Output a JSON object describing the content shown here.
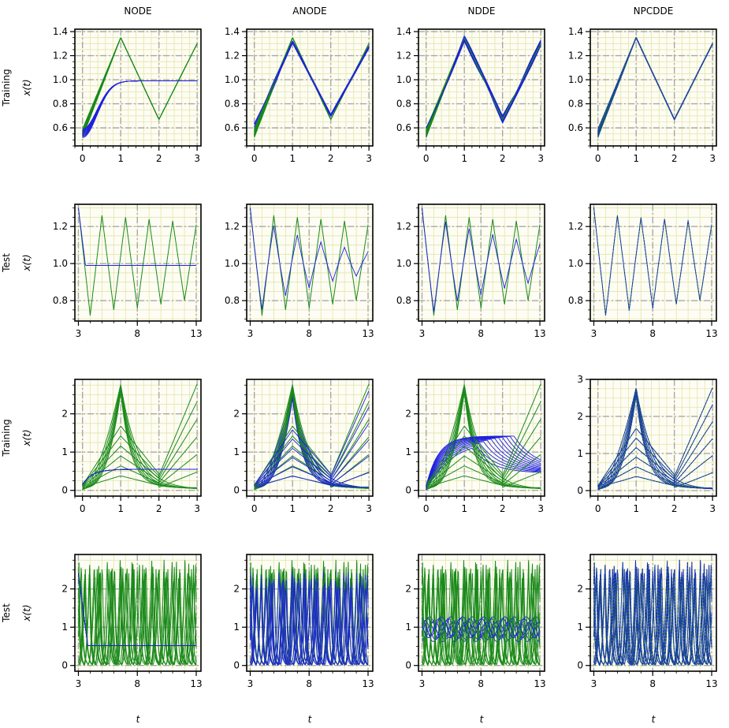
{
  "figure": {
    "column_titles": [
      "NODE",
      "ANODE",
      "NDDE",
      "NPCDDE"
    ],
    "row_labels": [
      "Training",
      "Test",
      "Training",
      "Test"
    ],
    "ylabel": "x(t)",
    "xlabel": "t"
  },
  "colors": {
    "ground_truth": "#1a8a1a",
    "prediction": "#1f1fe0",
    "minor_grid": "#e4e4a8",
    "major_grid": "#a8a8a8"
  },
  "chart_data": [
    {
      "type": "line",
      "row": 0,
      "col": 0,
      "title": "NODE",
      "row_label": "Training",
      "xlim": [
        -0.2,
        3.1
      ],
      "ylim": [
        0.45,
        1.42
      ],
      "xticks": [
        0,
        1,
        2,
        3
      ],
      "yticks": [
        0.6,
        0.8,
        1.0,
        1.2,
        1.4
      ],
      "system": "tri_small",
      "method": "node",
      "n": 10
    },
    {
      "type": "line",
      "row": 0,
      "col": 1,
      "title": "ANODE",
      "row_label": "Training",
      "xlim": [
        -0.2,
        3.1
      ],
      "ylim": [
        0.45,
        1.42
      ],
      "xticks": [
        0,
        1,
        2,
        3
      ],
      "yticks": [
        0.6,
        0.8,
        1.0,
        1.2,
        1.4
      ],
      "system": "tri_small",
      "method": "anode",
      "n": 10
    },
    {
      "type": "line",
      "row": 0,
      "col": 2,
      "title": "NDDE",
      "row_label": "Training",
      "xlim": [
        -0.2,
        3.1
      ],
      "ylim": [
        0.45,
        1.42
      ],
      "xticks": [
        0,
        1,
        2,
        3
      ],
      "yticks": [
        0.6,
        0.8,
        1.0,
        1.2,
        1.4
      ],
      "system": "tri_small",
      "method": "ndde",
      "n": 10
    },
    {
      "type": "line",
      "row": 0,
      "col": 3,
      "title": "NPCDDE",
      "row_label": "Training",
      "xlim": [
        -0.2,
        3.1
      ],
      "ylim": [
        0.45,
        1.42
      ],
      "xticks": [
        0,
        1,
        2,
        3
      ],
      "yticks": [
        0.6,
        0.8,
        1.0,
        1.2,
        1.4
      ],
      "system": "tri_small",
      "method": "npcdde",
      "n": 10
    },
    {
      "type": "line",
      "row": 1,
      "col": 0,
      "row_label": "Test",
      "xlim": [
        2.7,
        13.4
      ],
      "ylim": [
        0.69,
        1.32
      ],
      "xticks": [
        3,
        8,
        13
      ],
      "yticks": [
        0.8,
        1.0,
        1.2
      ],
      "system": "tri_test",
      "method": "node",
      "n": 1
    },
    {
      "type": "line",
      "row": 1,
      "col": 1,
      "row_label": "Test",
      "xlim": [
        2.7,
        13.4
      ],
      "ylim": [
        0.69,
        1.32
      ],
      "xticks": [
        3,
        8,
        13
      ],
      "yticks": [
        0.8,
        1.0,
        1.2
      ],
      "system": "tri_test",
      "method": "anode",
      "n": 1
    },
    {
      "type": "line",
      "row": 1,
      "col": 2,
      "row_label": "Test",
      "xlim": [
        2.7,
        13.4
      ],
      "ylim": [
        0.69,
        1.32
      ],
      "xticks": [
        3,
        8,
        13
      ],
      "yticks": [
        0.8,
        1.0,
        1.2
      ],
      "system": "tri_test",
      "method": "ndde",
      "n": 1
    },
    {
      "type": "line",
      "row": 1,
      "col": 3,
      "row_label": "Test",
      "xlim": [
        2.7,
        13.4
      ],
      "ylim": [
        0.69,
        1.32
      ],
      "xticks": [
        3,
        8,
        13
      ],
      "yticks": [
        0.8,
        1.0,
        1.2
      ],
      "system": "tri_test",
      "method": "npcdde",
      "n": 1
    },
    {
      "type": "line",
      "row": 2,
      "col": 0,
      "row_label": "Training",
      "xlim": [
        -0.2,
        3.1
      ],
      "ylim": [
        -0.15,
        2.9
      ],
      "xticks": [
        0,
        1,
        2,
        3
      ],
      "yticks": [
        0,
        1,
        2
      ],
      "system": "spike",
      "method": "node",
      "n": 12
    },
    {
      "type": "line",
      "row": 2,
      "col": 1,
      "row_label": "Training",
      "xlim": [
        -0.2,
        3.1
      ],
      "ylim": [
        -0.15,
        2.9
      ],
      "xticks": [
        0,
        1,
        2,
        3
      ],
      "yticks": [
        0,
        1,
        2
      ],
      "system": "spike",
      "method": "anode",
      "n": 12
    },
    {
      "type": "line",
      "row": 2,
      "col": 2,
      "row_label": "Training",
      "xlim": [
        -0.2,
        3.1
      ],
      "ylim": [
        -0.15,
        2.9
      ],
      "xticks": [
        0,
        1,
        2,
        3
      ],
      "yticks": [
        0,
        1,
        2
      ],
      "system": "spike",
      "method": "ndde",
      "n": 12
    },
    {
      "type": "line",
      "row": 2,
      "col": 3,
      "row_label": "Training",
      "xlim": [
        -0.2,
        3.1
      ],
      "ylim": [
        -0.15,
        3.0
      ],
      "xticks": [
        0,
        1,
        2,
        3
      ],
      "yticks": [
        0,
        1,
        2,
        3
      ],
      "system": "spike",
      "method": "npcdde",
      "n": 12
    },
    {
      "type": "line",
      "row": 3,
      "col": 0,
      "row_label": "Test",
      "xlim": [
        2.7,
        13.4
      ],
      "ylim": [
        -0.15,
        2.9
      ],
      "xticks": [
        3,
        8,
        13
      ],
      "yticks": [
        0,
        1,
        2
      ],
      "system": "spike_test",
      "method": "node",
      "n": 8
    },
    {
      "type": "line",
      "row": 3,
      "col": 1,
      "row_label": "Test",
      "xlim": [
        2.7,
        13.4
      ],
      "ylim": [
        -0.15,
        2.9
      ],
      "xticks": [
        3,
        8,
        13
      ],
      "yticks": [
        0,
        1,
        2
      ],
      "system": "spike_test",
      "method": "anode",
      "n": 8
    },
    {
      "type": "line",
      "row": 3,
      "col": 2,
      "row_label": "Test",
      "xlim": [
        2.7,
        13.4
      ],
      "ylim": [
        -0.15,
        2.9
      ],
      "xticks": [
        3,
        8,
        13
      ],
      "yticks": [
        0,
        1,
        2
      ],
      "system": "spike_test",
      "method": "ndde",
      "n": 8
    },
    {
      "type": "line",
      "row": 3,
      "col": 3,
      "row_label": "Test",
      "xlim": [
        2.7,
        13.4
      ],
      "ylim": [
        -0.15,
        2.9
      ],
      "xticks": [
        3,
        8,
        13
      ],
      "yticks": [
        0,
        1,
        2
      ],
      "system": "spike_test",
      "method": "npcdde",
      "n": 8
    }
  ]
}
